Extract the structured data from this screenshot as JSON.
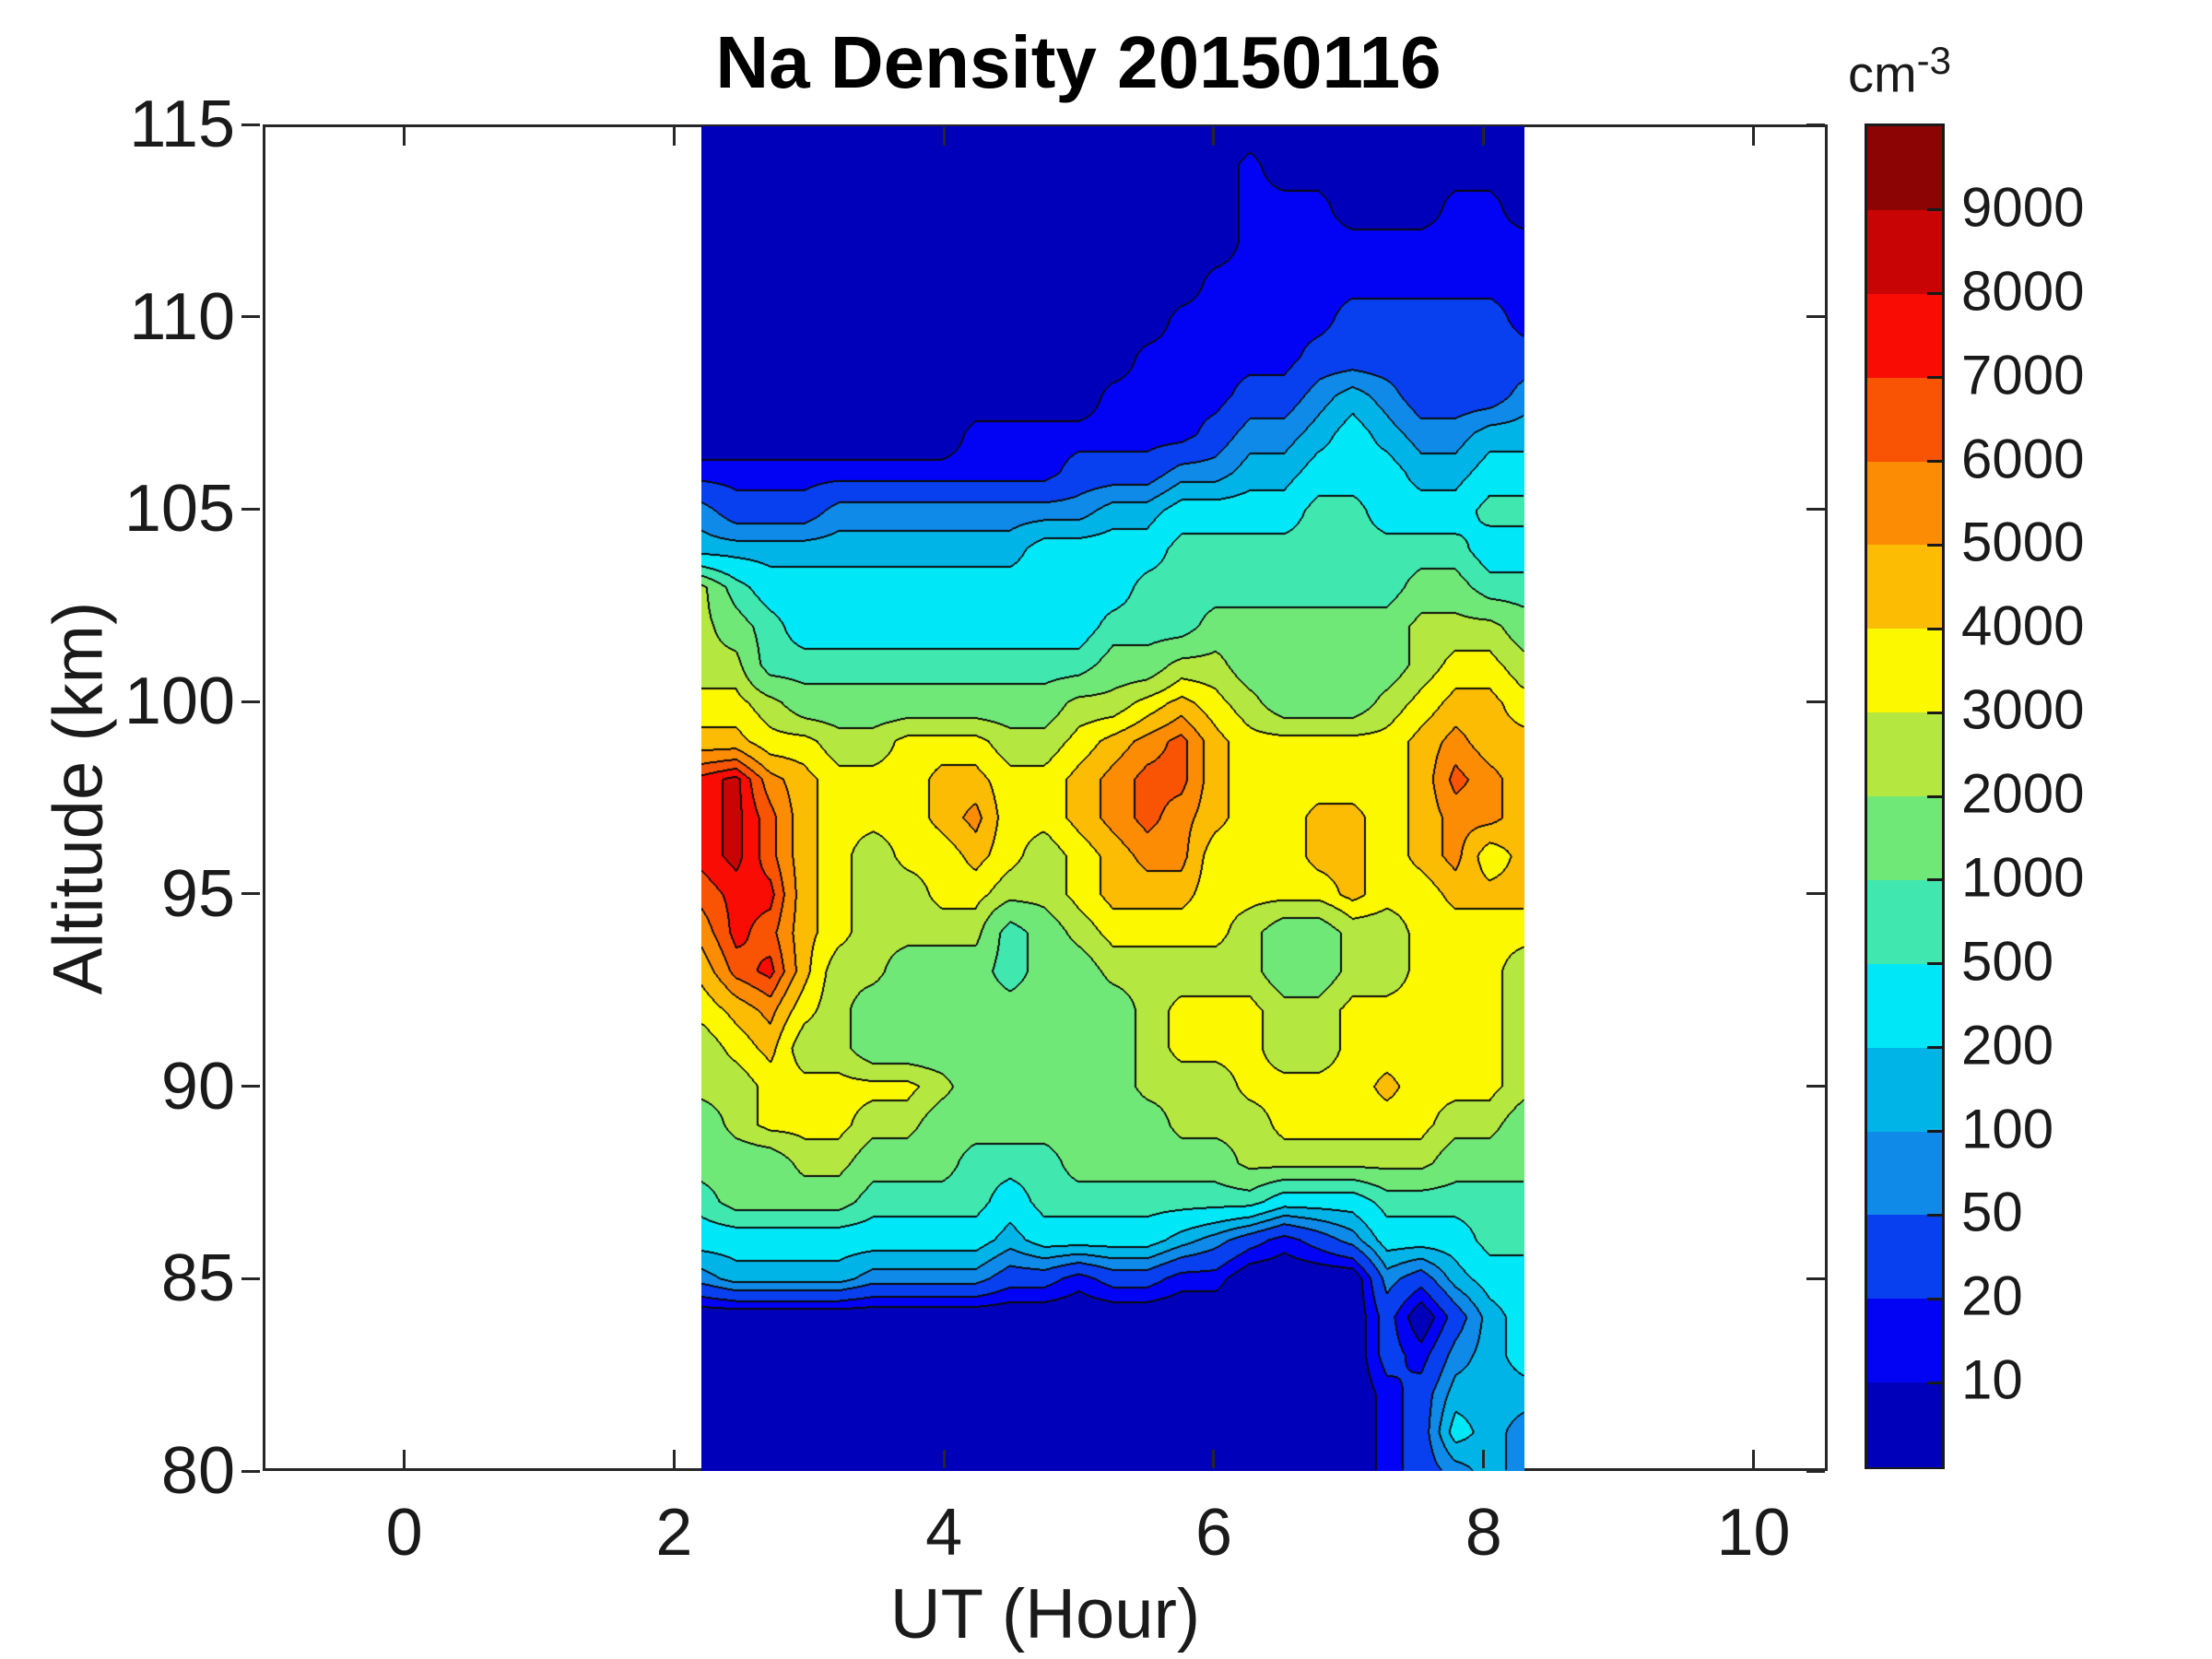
{
  "title": "Na Density 20150116",
  "axes": {
    "xlabel": "UT (Hour)",
    "ylabel": "Altitude (km)",
    "x_ticks": [
      0,
      2,
      4,
      6,
      8,
      10
    ],
    "y_ticks": [
      80,
      85,
      90,
      95,
      100,
      105,
      110,
      115
    ]
  },
  "colorbar": {
    "unit_base": "cm",
    "unit_exp": "-3",
    "labels_top_to_bottom": [
      9000,
      8000,
      7000,
      6000,
      5000,
      4000,
      3000,
      2000,
      1000,
      500,
      200,
      100,
      50,
      20,
      10
    ]
  },
  "chart_data": {
    "type": "filled_contour",
    "title": "Na Density 20150116",
    "xlabel": "UT (Hour)",
    "ylabel": "Altitude (km)",
    "units": "cm^-3",
    "xlim": [
      -1.05,
      10.55
    ],
    "ylim": [
      80,
      115
    ],
    "x_ticks": [
      0,
      2,
      4,
      6,
      8,
      10
    ],
    "y_ticks": [
      80,
      85,
      90,
      95,
      100,
      105,
      110,
      115
    ],
    "grid": false,
    "legend_position": "right-colorbar",
    "levels": [
      10,
      20,
      50,
      100,
      200,
      500,
      1000,
      2000,
      3000,
      4000,
      5000,
      6000,
      7000,
      8000,
      9000
    ],
    "band_colors_low_to_high": [
      "#0000bb",
      "#0202f5",
      "#0840f0",
      "#0f8ae8",
      "#00b4e8",
      "#00e8f8",
      "#40e8b0",
      "#70e878",
      "#b4e840",
      "#fcf800",
      "#fcbc04",
      "#fc8c04",
      "#f85404",
      "#f80c04",
      "#c80404",
      "#8c0404"
    ],
    "contour_line_color": "#0a0a0a",
    "data_x_range": [
      2.2,
      8.3
    ],
    "x": [
      2.2,
      2.45,
      2.71,
      2.96,
      3.22,
      3.47,
      3.73,
      3.98,
      4.23,
      4.49,
      4.74,
      5.0,
      5.25,
      5.5,
      5.76,
      6.01,
      6.27,
      6.52,
      6.77,
      7.03,
      7.28,
      7.54,
      7.79,
      8.05,
      8.3
    ],
    "y_rows_top_to_bottom": [
      115,
      114,
      113,
      112,
      111,
      110,
      109,
      108,
      107,
      106,
      105,
      104,
      103,
      102,
      101,
      100,
      99,
      98,
      97,
      96,
      95,
      94,
      93,
      92,
      91,
      90,
      89,
      88,
      87,
      86,
      85,
      84,
      83,
      82,
      81,
      80
    ],
    "density_rows_top_to_bottom": [
      [
        5,
        5,
        5,
        5,
        5,
        5,
        5,
        5,
        5,
        5,
        5,
        5,
        5,
        5,
        5,
        5,
        5,
        5,
        5,
        5,
        5,
        5,
        5,
        5,
        5
      ],
      [
        5,
        5,
        5,
        5,
        5,
        5,
        5,
        5,
        5,
        5,
        5,
        5,
        5,
        5,
        5,
        5,
        14,
        5,
        5,
        5,
        5,
        5,
        5,
        5,
        5
      ],
      [
        5,
        5,
        5,
        5,
        5,
        5,
        5,
        5,
        5,
        5,
        5,
        5,
        5,
        5,
        5,
        5,
        14,
        14,
        14,
        5,
        5,
        5,
        14,
        14,
        5
      ],
      [
        5,
        5,
        5,
        5,
        5,
        5,
        5,
        5,
        5,
        5,
        5,
        5,
        5,
        5,
        5,
        5,
        14,
        14,
        14,
        14,
        14,
        14,
        14,
        14,
        14
      ],
      [
        5,
        5,
        5,
        5,
        5,
        5,
        5,
        5,
        5,
        5,
        5,
        5,
        5,
        5,
        5,
        14,
        14,
        14,
        14,
        14,
        14,
        14,
        14,
        14,
        14
      ],
      [
        5,
        5,
        5,
        5,
        5,
        5,
        5,
        5,
        5,
        5,
        5,
        5,
        5,
        5,
        14,
        14,
        14,
        14,
        14,
        30,
        30,
        30,
        30,
        30,
        14
      ],
      [
        5,
        5,
        5,
        5,
        5,
        5,
        5,
        5,
        5,
        5,
        5,
        5,
        5,
        14,
        14,
        14,
        14,
        14,
        30,
        30,
        30,
        30,
        30,
        30,
        30
      ],
      [
        5,
        5,
        5,
        5,
        5,
        5,
        5,
        5,
        5,
        5,
        5,
        5,
        14,
        14,
        14,
        14,
        30,
        30,
        70,
        140,
        70,
        30,
        30,
        30,
        70
      ],
      [
        5,
        5,
        5,
        5,
        5,
        5,
        5,
        5,
        14,
        14,
        14,
        14,
        14,
        14,
        14,
        30,
        70,
        70,
        140,
        300,
        140,
        70,
        70,
        140,
        140
      ],
      [
        14,
        14,
        14,
        14,
        14,
        14,
        14,
        14,
        14,
        14,
        14,
        30,
        30,
        30,
        70,
        70,
        140,
        140,
        300,
        300,
        300,
        140,
        140,
        300,
        300
      ],
      [
        70,
        30,
        30,
        30,
        70,
        70,
        70,
        70,
        70,
        70,
        70,
        70,
        140,
        140,
        300,
        300,
        300,
        300,
        700,
        700,
        300,
        300,
        300,
        700,
        700
      ],
      [
        140,
        140,
        140,
        140,
        140,
        140,
        140,
        140,
        140,
        140,
        300,
        300,
        300,
        300,
        700,
        700,
        700,
        700,
        700,
        700,
        700,
        700,
        700,
        300,
        300
      ],
      [
        2400,
        700,
        300,
        300,
        300,
        300,
        300,
        300,
        300,
        300,
        300,
        300,
        300,
        700,
        700,
        700,
        700,
        700,
        700,
        700,
        700,
        1400,
        1400,
        700,
        700
      ],
      [
        2400,
        1400,
        700,
        300,
        300,
        300,
        300,
        300,
        300,
        300,
        300,
        300,
        700,
        700,
        700,
        1400,
        1400,
        1400,
        1400,
        1400,
        1400,
        2400,
        2400,
        2400,
        1400
      ],
      [
        2400,
        2400,
        700,
        700,
        700,
        700,
        700,
        700,
        700,
        700,
        700,
        700,
        1400,
        1400,
        2400,
        2400,
        1400,
        1400,
        1400,
        1400,
        1400,
        2400,
        3400,
        3400,
        2400
      ],
      [
        3400,
        3400,
        2400,
        1400,
        1400,
        1400,
        1400,
        1400,
        1400,
        1400,
        1400,
        2400,
        2400,
        3400,
        4400,
        3400,
        2400,
        1400,
        1400,
        1400,
        2400,
        3400,
        4400,
        4400,
        3400
      ],
      [
        4400,
        4400,
        3400,
        3400,
        2400,
        2400,
        3400,
        3400,
        3400,
        2400,
        2400,
        3400,
        4400,
        5400,
        6400,
        4400,
        3400,
        3400,
        3400,
        3400,
        3400,
        4400,
        5400,
        4400,
        4400
      ],
      [
        7400,
        8400,
        5400,
        4400,
        3400,
        3400,
        3400,
        4400,
        4400,
        3400,
        3400,
        4400,
        5400,
        6400,
        6400,
        4400,
        3400,
        3400,
        3400,
        3400,
        3400,
        4400,
        6400,
        5400,
        4400
      ],
      [
        7400,
        8400,
        6400,
        4400,
        3400,
        3400,
        3400,
        4400,
        5400,
        3400,
        3400,
        4400,
        5400,
        6400,
        5400,
        4400,
        3400,
        3400,
        4400,
        4400,
        3400,
        4400,
        5400,
        5400,
        4400
      ],
      [
        7400,
        8400,
        6400,
        4400,
        3400,
        2400,
        3400,
        3400,
        4400,
        3400,
        2400,
        3400,
        4400,
        5400,
        5400,
        3400,
        3400,
        3400,
        4400,
        4400,
        3400,
        4400,
        5400,
        3400,
        4400
      ],
      [
        6400,
        7400,
        7400,
        4400,
        3400,
        2400,
        2400,
        3400,
        3400,
        2400,
        2400,
        3400,
        4400,
        4400,
        4400,
        3400,
        3400,
        3400,
        3400,
        4400,
        3400,
        3400,
        4400,
        4400,
        4400
      ],
      [
        5400,
        7400,
        6400,
        4400,
        3400,
        2400,
        2400,
        2400,
        2400,
        700,
        1400,
        2400,
        3400,
        3400,
        3400,
        3400,
        2400,
        1400,
        1400,
        2400,
        2400,
        3400,
        3400,
        3400,
        3400
      ],
      [
        4400,
        6400,
        7400,
        4400,
        2400,
        2400,
        1400,
        1400,
        1400,
        700,
        1400,
        1400,
        2400,
        2400,
        2400,
        2400,
        2400,
        1400,
        1400,
        2400,
        2400,
        3400,
        3400,
        3400,
        2400
      ],
      [
        3400,
        4400,
        5400,
        3400,
        2400,
        1400,
        1400,
        1400,
        1400,
        1400,
        1400,
        1400,
        1400,
        2400,
        3400,
        3400,
        3400,
        2400,
        2400,
        3400,
        3400,
        3400,
        3400,
        3400,
        2400
      ],
      [
        2400,
        3400,
        4400,
        2400,
        2400,
        1400,
        1400,
        1400,
        1400,
        1400,
        1400,
        1400,
        1400,
        2400,
        3400,
        3400,
        3400,
        2400,
        2400,
        3400,
        3400,
        3400,
        3400,
        3400,
        2400
      ],
      [
        2400,
        2400,
        3400,
        3400,
        3400,
        3400,
        3400,
        2400,
        1400,
        1400,
        1400,
        1400,
        1400,
        2400,
        2400,
        2400,
        3400,
        3400,
        3400,
        3400,
        4400,
        3400,
        3400,
        3400,
        2400
      ],
      [
        1400,
        2400,
        3400,
        3400,
        3400,
        2400,
        2400,
        1400,
        1400,
        1400,
        1400,
        1400,
        1400,
        1400,
        2400,
        2400,
        2400,
        3400,
        3400,
        3400,
        3400,
        3400,
        2400,
        2400,
        1400
      ],
      [
        1400,
        1400,
        1400,
        2400,
        2400,
        1400,
        1400,
        1400,
        700,
        700,
        700,
        1400,
        1400,
        1400,
        1400,
        1400,
        2400,
        2400,
        2400,
        2400,
        2400,
        2400,
        1400,
        1400,
        1400
      ],
      [
        700,
        1400,
        1400,
        1400,
        1400,
        700,
        700,
        700,
        700,
        300,
        700,
        700,
        700,
        700,
        700,
        700,
        700,
        300,
        300,
        300,
        700,
        700,
        700,
        700,
        700
      ],
      [
        300,
        300,
        300,
        300,
        300,
        300,
        300,
        300,
        300,
        140,
        300,
        300,
        300,
        300,
        140,
        70,
        30,
        14,
        30,
        70,
        300,
        300,
        300,
        700,
        700
      ],
      [
        70,
        140,
        140,
        140,
        140,
        70,
        70,
        70,
        70,
        30,
        30,
        14,
        30,
        30,
        14,
        14,
        5,
        5,
        5,
        5,
        70,
        30,
        140,
        300,
        300
      ],
      [
        5,
        5,
        5,
        5,
        5,
        5,
        5,
        5,
        5,
        5,
        5,
        5,
        5,
        5,
        5,
        5,
        5,
        5,
        5,
        5,
        30,
        5,
        30,
        140,
        300
      ],
      [
        5,
        5,
        5,
        5,
        5,
        5,
        5,
        5,
        5,
        5,
        5,
        5,
        5,
        5,
        5,
        5,
        5,
        5,
        5,
        5,
        30,
        14,
        70,
        140,
        300
      ],
      [
        5,
        5,
        5,
        5,
        5,
        5,
        5,
        5,
        5,
        5,
        5,
        5,
        5,
        5,
        5,
        5,
        5,
        5,
        5,
        5,
        14,
        30,
        140,
        140,
        140
      ],
      [
        5,
        5,
        5,
        5,
        5,
        5,
        5,
        5,
        5,
        5,
        5,
        5,
        5,
        5,
        5,
        5,
        5,
        5,
        5,
        5,
        14,
        30,
        300,
        140,
        70
      ],
      [
        5,
        5,
        5,
        5,
        5,
        5,
        5,
        5,
        5,
        5,
        5,
        5,
        5,
        5,
        5,
        5,
        5,
        5,
        5,
        5,
        14,
        30,
        70,
        140,
        70
      ]
    ]
  }
}
